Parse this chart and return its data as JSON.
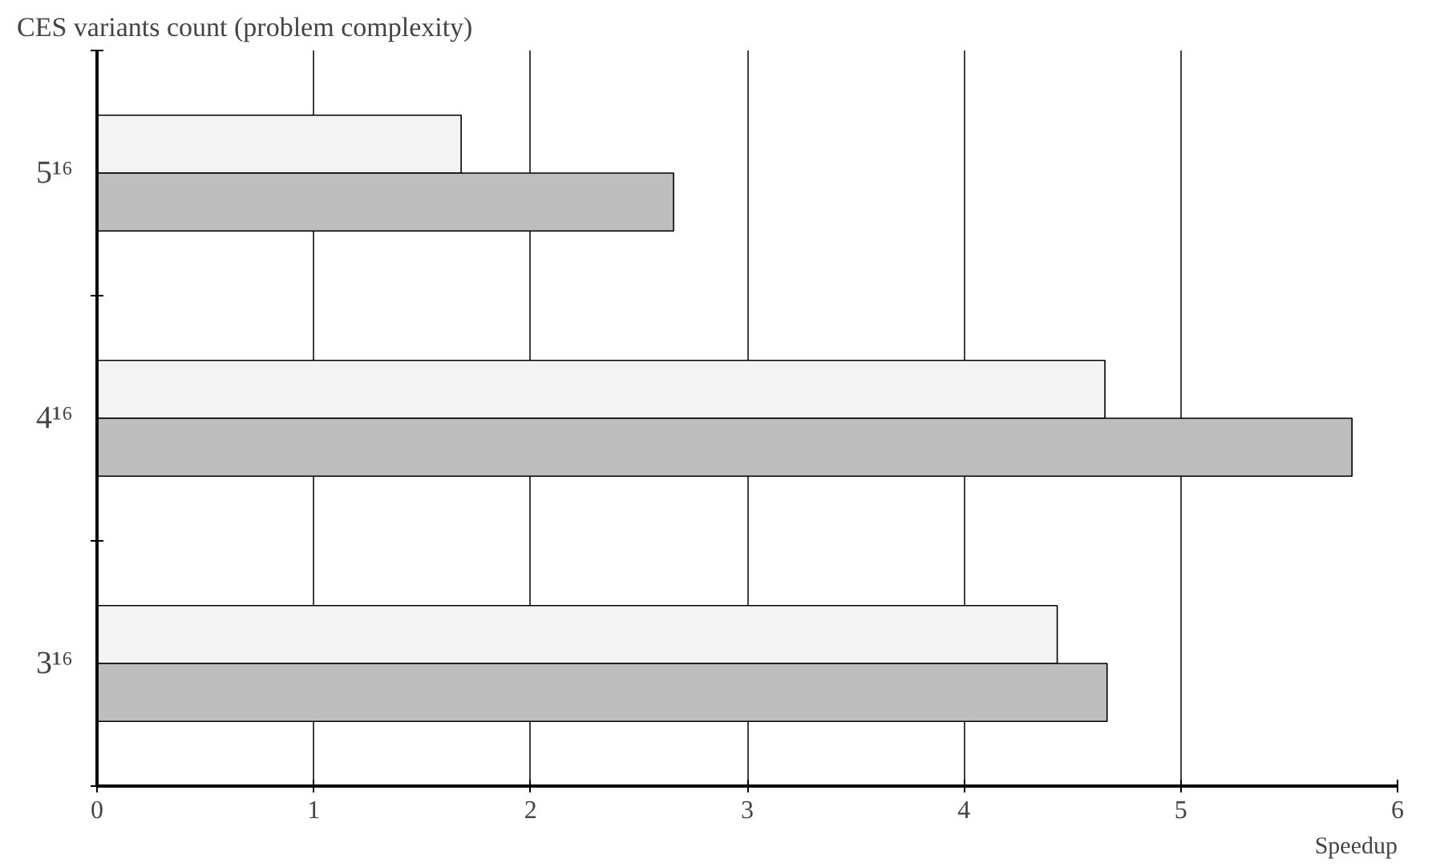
{
  "chart_data": {
    "type": "bar",
    "orientation": "horizontal",
    "ylabel": "CES  variants count (problem complexity)",
    "xlabel": "Speedup",
    "categories": [
      "5¹⁶",
      "4¹⁶",
      "3¹⁶"
    ],
    "series": [
      {
        "color": "#f2f3f2",
        "values": [
          1.68,
          4.65,
          4.43
        ]
      },
      {
        "color": "#bebebe",
        "values": [
          2.66,
          5.79,
          4.66
        ]
      }
    ],
    "xlim": [
      0,
      6
    ],
    "xticks": [
      0,
      1,
      2,
      3,
      4,
      5,
      6
    ],
    "grid": "x"
  }
}
